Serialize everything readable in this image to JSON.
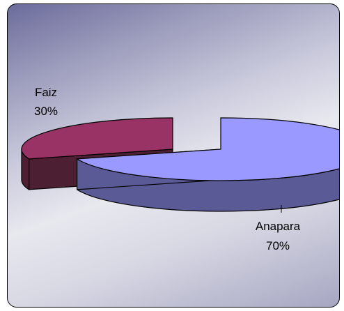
{
  "chart_data": {
    "type": "pie",
    "title": "",
    "slices": [
      {
        "label": "Anapara",
        "value": 70,
        "value_label": "70%",
        "color": "#9999ff",
        "side_color": "#5a5a96"
      },
      {
        "label": "Faiz",
        "value": 30,
        "value_label": "30%",
        "color": "#993366",
        "side_color": "#4d1f33"
      }
    ],
    "three_d": true,
    "exploded": true,
    "legend": "none"
  }
}
